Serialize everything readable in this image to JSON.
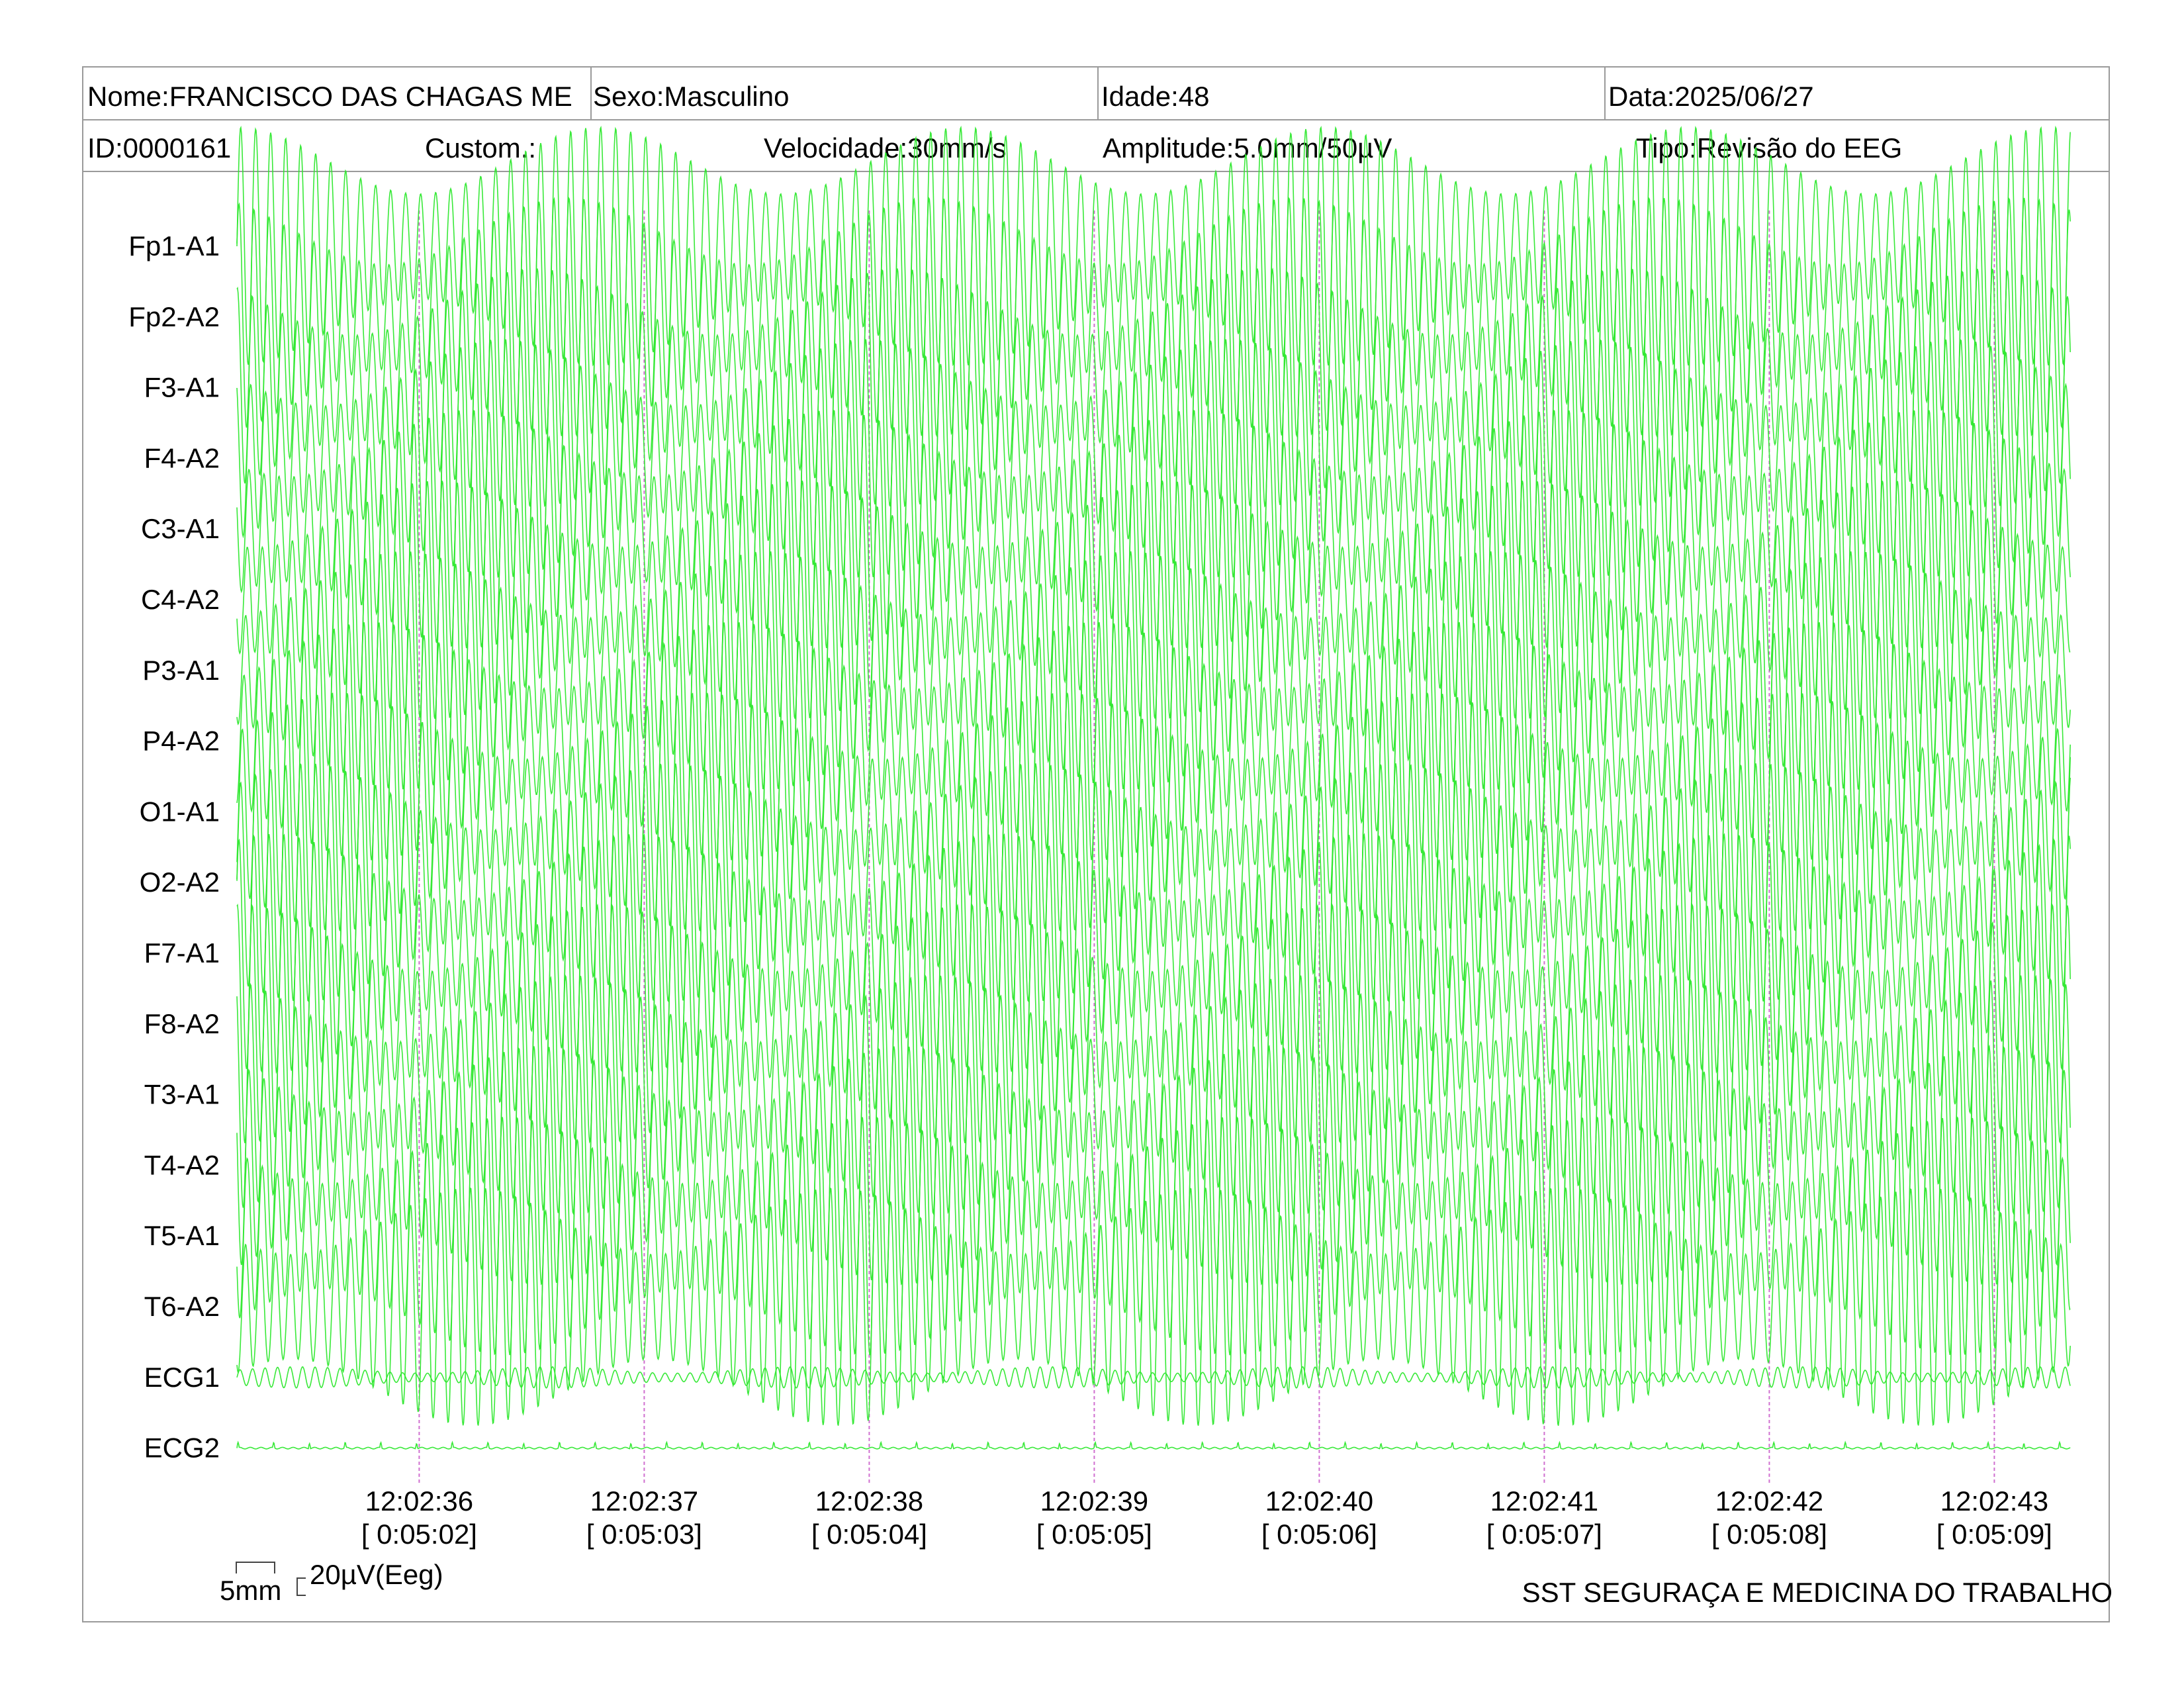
{
  "header": {
    "row1": {
      "name": "Nome:FRANCISCO DAS CHAGAS ME",
      "sex": "Sexo:Masculino",
      "age": "Idade:48",
      "date": "Data:2025/06/27"
    },
    "row2": {
      "id": "ID:0000161",
      "custom": "Custom.:",
      "speed": "Velocidade:30mm/s",
      "amplitude": "Amplitude:5.0mm/50µV",
      "type": "Tipo:Revisão do EEG"
    }
  },
  "chart_data": {
    "type": "line",
    "title": "",
    "xlabel": "",
    "ylabel": "",
    "trace_color": "#2ee82e",
    "marker_color": "#d070d0",
    "channels": [
      "Fp1-A1",
      "Fp2-A2",
      "F3-A1",
      "F4-A2",
      "C3-A1",
      "C4-A2",
      "P3-A1",
      "P4-A2",
      "O1-A1",
      "O2-A2",
      "F7-A1",
      "F8-A2",
      "T3-A1",
      "T4-A2",
      "T5-A1",
      "T6-A2",
      "ECG1",
      "ECG2"
    ],
    "time_marks": [
      {
        "clock": "12:02:36",
        "elapsed": "[ 0:05:02]"
      },
      {
        "clock": "12:02:37",
        "elapsed": "[ 0:05:03]"
      },
      {
        "clock": "12:02:38",
        "elapsed": "[ 0:05:04]"
      },
      {
        "clock": "12:02:39",
        "elapsed": "[ 0:05:05]"
      },
      {
        "clock": "12:02:40",
        "elapsed": "[ 0:05:06]"
      },
      {
        "clock": "12:02:41",
        "elapsed": "[ 0:05:07]"
      },
      {
        "clock": "12:02:42",
        "elapsed": "[ 0:05:08]"
      },
      {
        "clock": "12:02:43",
        "elapsed": "[ 0:05:09]"
      }
    ],
    "x_range_seconds": [
      0,
      8.15
    ],
    "first_mark_seconds": 0.81,
    "eeg_frequency_hz": 15,
    "eeg_amplitude_uV": 90,
    "ecg1_amplitude_uV": 8,
    "ecg2_amplitude_uV": 2
  },
  "scale": {
    "length_label": "5mm",
    "amplitude_label": "20µV(Eeg)"
  },
  "footer": {
    "company": "SST SEGURAÇA E MEDICINA DO TRABALHO"
  }
}
